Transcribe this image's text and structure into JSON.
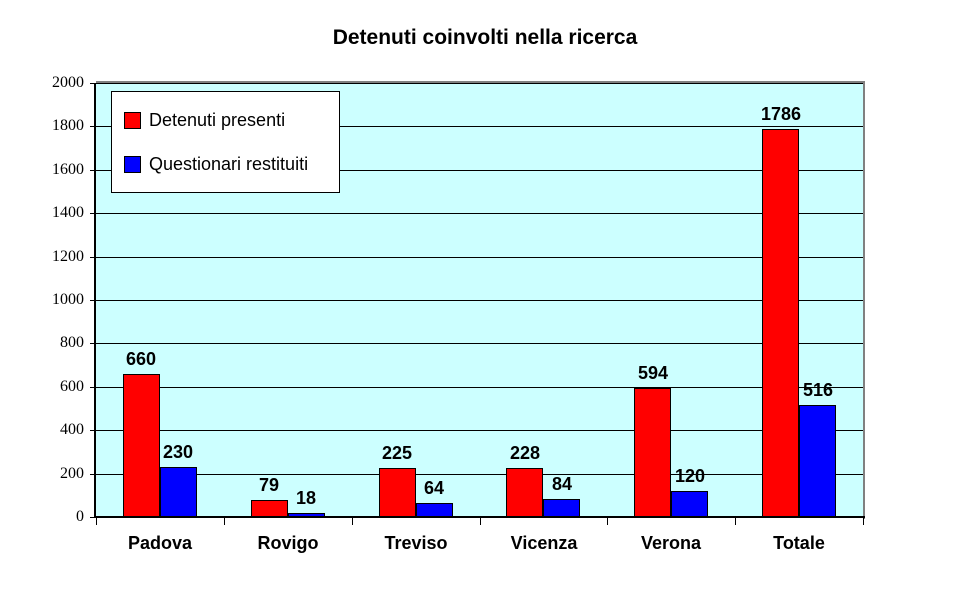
{
  "chart_data": {
    "type": "bar",
    "title": "Detenuti coinvolti nella ricerca",
    "categories": [
      "Padova",
      "Rovigo",
      "Treviso",
      "Vicenza",
      "Verona",
      "Totale"
    ],
    "series": [
      {
        "name": "Detenuti presenti",
        "color": "#FF0000",
        "values": [
          660,
          79,
          225,
          228,
          594,
          1786
        ]
      },
      {
        "name": "Questionari restituiti",
        "color": "#0000FF",
        "values": [
          230,
          18,
          64,
          84,
          120,
          516
        ]
      }
    ],
    "xlabel": "",
    "ylabel": "",
    "ylim": [
      0,
      2000
    ],
    "yticks": [
      0,
      200,
      400,
      600,
      800,
      1000,
      1200,
      1400,
      1600,
      1800,
      2000
    ],
    "grid": true,
    "legend_position": "top-left-inside",
    "colors": {
      "plot_bg": "#CCFFFF",
      "plot_border": "#808080",
      "axis": "#000000",
      "gridline": "#000000",
      "label_text": "#000000"
    }
  }
}
